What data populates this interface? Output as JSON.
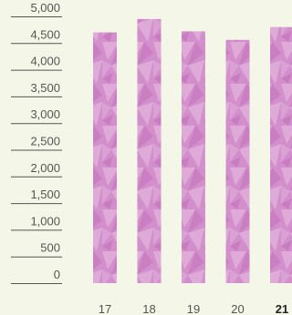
{
  "chart_data": {
    "type": "bar",
    "categories": [
      "17",
      "18",
      "19",
      "20",
      "21"
    ],
    "values": [
      4700,
      4950,
      4720,
      4560,
      4800
    ],
    "highlight_category": "21",
    "ylim": [
      0,
      5000
    ],
    "yticks": [
      {
        "value": 5000,
        "label": "5,000"
      },
      {
        "value": 4500,
        "label": "4,500"
      },
      {
        "value": 4000,
        "label": "4,000"
      },
      {
        "value": 3500,
        "label": "3,500"
      },
      {
        "value": 3000,
        "label": "3,000"
      },
      {
        "value": 2500,
        "label": "2,500"
      },
      {
        "value": 2000,
        "label": "2,000"
      },
      {
        "value": 1500,
        "label": "1,500"
      },
      {
        "value": 1000,
        "label": "1,000"
      },
      {
        "value": 500,
        "label": "500"
      },
      {
        "value": 0,
        "label": "0"
      }
    ],
    "grid": false,
    "colors": {
      "background": "#f4f6e8",
      "bar": "#d28fcb",
      "bar_facet_light": "#e2b3dc",
      "bar_facet_dark": "#c578bd",
      "axis_text": "#555555",
      "highlight_text": "#222222"
    }
  }
}
